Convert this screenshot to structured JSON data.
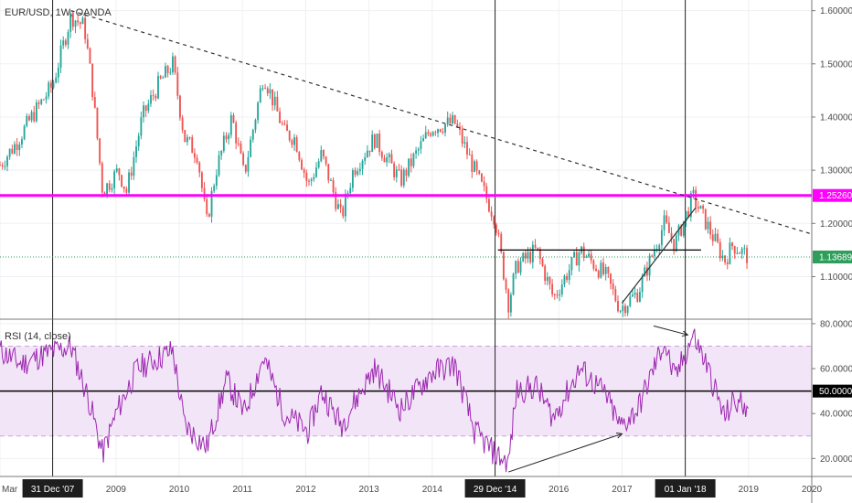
{
  "chart_data": [
    {
      "type": "candlestick",
      "title": "EUR/USD, 1W, OANDA",
      "price_axis": {
        "ticks": [
          "1.60000",
          "1.50000",
          "1.40000",
          "1.30000",
          "1.20000",
          "1.10000"
        ],
        "range": [
          1.02,
          1.62
        ]
      },
      "time_axis": {
        "labels": [
          "Mar",
          "31 Dec '07",
          "2009",
          "2010",
          "2011",
          "2012",
          "2013",
          "2014",
          "29 Dec '14",
          "2016",
          "2017",
          "01 Jan '18",
          "2019",
          "2020"
        ],
        "range": [
          "2007-03",
          "2020-01"
        ]
      },
      "series": [
        {
          "values": [
            [
              "2007-03-01",
              1.31
            ],
            [
              "2007-06-01",
              1.35
            ],
            [
              "2007-09-01",
              1.4
            ],
            [
              "2007-12-31",
              1.46
            ],
            [
              "2008-04-15",
              1.59
            ],
            [
              "2008-07-01",
              1.57
            ],
            [
              "2008-08-15",
              1.46
            ],
            [
              "2008-10-15",
              1.26
            ],
            [
              "2008-12-01",
              1.28
            ],
            [
              "2009-01-15",
              1.3
            ],
            [
              "2009-03-01",
              1.26
            ],
            [
              "2009-06-01",
              1.4
            ],
            [
              "2009-09-01",
              1.46
            ],
            [
              "2009-11-25",
              1.5
            ],
            [
              "2010-02-01",
              1.36
            ],
            [
              "2010-04-15",
              1.33
            ],
            [
              "2010-06-07",
              1.2
            ],
            [
              "2010-08-01",
              1.3
            ],
            [
              "2010-11-01",
              1.4
            ],
            [
              "2011-01-10",
              1.29
            ],
            [
              "2011-05-01",
              1.48
            ],
            [
              "2011-09-01",
              1.37
            ],
            [
              "2011-11-01",
              1.36
            ],
            [
              "2012-01-15",
              1.27
            ],
            [
              "2012-04-01",
              1.33
            ],
            [
              "2012-07-24",
              1.21
            ],
            [
              "2012-10-01",
              1.3
            ],
            [
              "2013-02-01",
              1.36
            ],
            [
              "2013-07-01",
              1.28
            ],
            [
              "2013-12-27",
              1.38
            ],
            [
              "2014-05-08",
              1.39
            ],
            [
              "2014-09-01",
              1.3
            ],
            [
              "2014-12-29",
              1.21
            ],
            [
              "2015-03-15",
              1.05
            ],
            [
              "2015-05-01",
              1.12
            ],
            [
              "2015-08-24",
              1.15
            ],
            [
              "2015-12-01",
              1.06
            ],
            [
              "2016-05-03",
              1.15
            ],
            [
              "2016-10-01",
              1.1
            ],
            [
              "2016-12-20",
              1.04
            ],
            [
              "2017-04-01",
              1.07
            ],
            [
              "2017-09-01",
              1.2
            ],
            [
              "2017-11-01",
              1.16
            ],
            [
              "2018-02-15",
              1.25
            ],
            [
              "2018-05-01",
              1.2
            ],
            [
              "2018-08-15",
              1.13
            ],
            [
              "2018-10-01",
              1.16
            ],
            [
              "2018-12-31",
              1.1369
            ]
          ]
        }
      ],
      "horizontal_levels": [
        {
          "label": "1.25260",
          "value": 1.2526,
          "color": "#ff00ff"
        },
        {
          "label": "1.13689",
          "value": 1.13689,
          "color": "#2e9e5b"
        },
        {
          "value": 1.15,
          "color": "#000000",
          "from": "2015-01-15",
          "to": "2018-04-01"
        }
      ],
      "trendlines": [
        {
          "from": [
            "2008-04-15",
            1.6
          ],
          "to": [
            "2020-01-01",
            1.18
          ],
          "style": "dashed"
        },
        {
          "from": [
            "2017-01-01",
            1.05
          ],
          "to": [
            "2018-03-01",
            1.23
          ],
          "style": "solid"
        }
      ],
      "vertical_markers": [
        "2007-12-31",
        "2014-12-29",
        "2018-01-01"
      ],
      "colors": {
        "up": "#26a69a",
        "down": "#ef5350"
      }
    },
    {
      "type": "line",
      "title": "RSI (14, close)",
      "y_axis": {
        "ticks": [
          "80.0000",
          "60.0000",
          "40.0000",
          "20.0000"
        ],
        "range": [
          12,
          82
        ]
      },
      "bands": {
        "upper": 70,
        "lower": 30
      },
      "midline": {
        "label": "50.0000",
        "value": 50
      },
      "series": [
        {
          "color": "#9c27b0",
          "values": [
            [
              "2007-03-01",
              68
            ],
            [
              "2007-07-01",
              62
            ],
            [
              "2007-11-01",
              66
            ],
            [
              "2008-04-15",
              70
            ],
            [
              "2008-08-01",
              45
            ],
            [
              "2008-10-15",
              22
            ],
            [
              "2009-01-01",
              40
            ],
            [
              "2009-05-01",
              60
            ],
            [
              "2009-11-25",
              68
            ],
            [
              "2010-02-01",
              35
            ],
            [
              "2010-06-07",
              25
            ],
            [
              "2010-10-01",
              55
            ],
            [
              "2011-01-10",
              40
            ],
            [
              "2011-05-01",
              65
            ],
            [
              "2011-09-01",
              40
            ],
            [
              "2012-01-15",
              32
            ],
            [
              "2012-04-01",
              50
            ],
            [
              "2012-07-24",
              35
            ],
            [
              "2013-02-01",
              60
            ],
            [
              "2013-07-01",
              42
            ],
            [
              "2013-12-27",
              58
            ],
            [
              "2014-05-08",
              62
            ],
            [
              "2014-09-01",
              32
            ],
            [
              "2014-12-29",
              22
            ],
            [
              "2015-03-15",
              18
            ],
            [
              "2015-05-01",
              50
            ],
            [
              "2015-08-24",
              52
            ],
            [
              "2015-12-01",
              38
            ],
            [
              "2016-05-03",
              60
            ],
            [
              "2016-10-01",
              48
            ],
            [
              "2016-12-20",
              34
            ],
            [
              "2017-04-01",
              42
            ],
            [
              "2017-09-01",
              72
            ],
            [
              "2017-11-01",
              55
            ],
            [
              "2018-02-15",
              75
            ],
            [
              "2018-05-01",
              62
            ],
            [
              "2018-08-15",
              38
            ],
            [
              "2018-10-01",
              45
            ],
            [
              "2018-12-31",
              44
            ]
          ]
        }
      ],
      "trendlines": [
        {
          "from": [
            "2015-03-15",
            14
          ],
          "to": [
            "2017-01-01",
            31
          ]
        },
        {
          "from": [
            "2017-07-01",
            79
          ],
          "to": [
            "2018-01-15",
            75
          ]
        }
      ]
    }
  ]
}
